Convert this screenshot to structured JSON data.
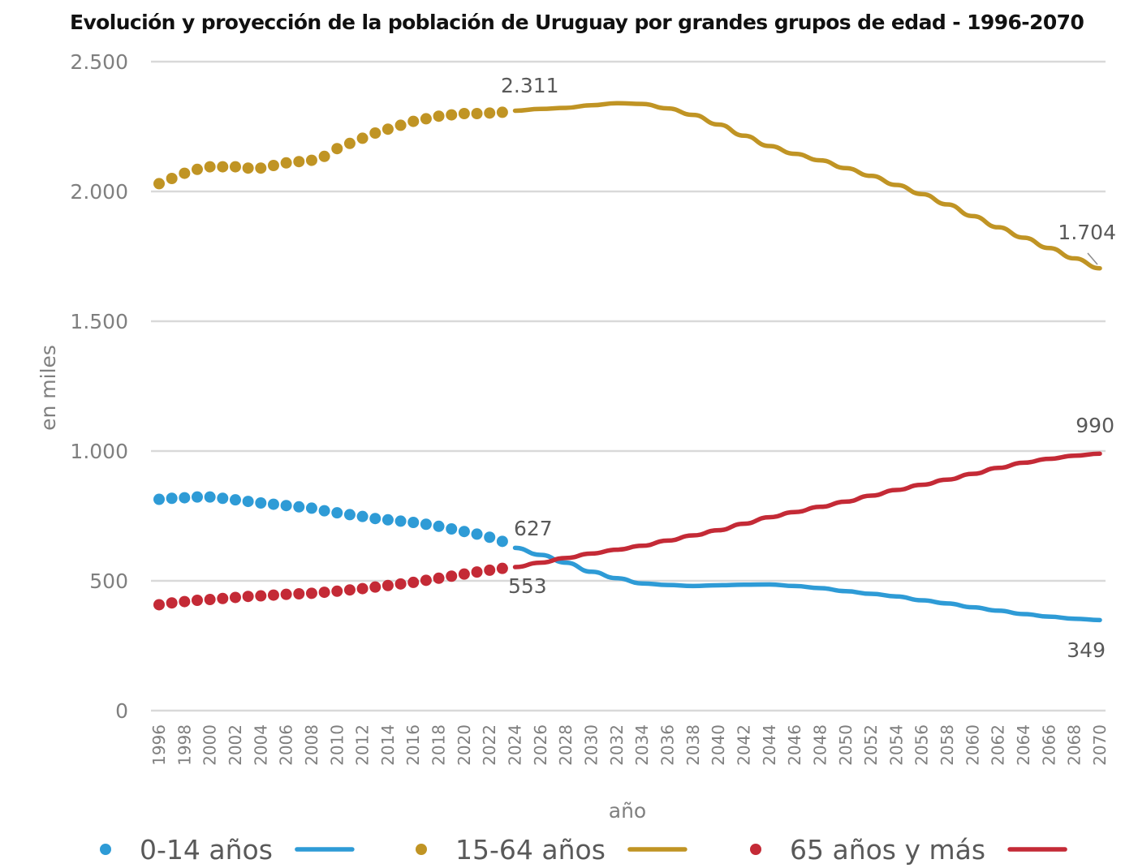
{
  "chart_data": {
    "type": "line",
    "title": "Evolución y proyección de la población de Uruguay por grandes grupos de edad - 1996-2070",
    "xlabel": "año",
    "ylabel": "en miles",
    "ylim": [
      0,
      2500
    ],
    "xlim": [
      1996,
      2070
    ],
    "grid": true,
    "legend_position": "bottom",
    "y_ticks": [
      {
        "value": 0,
        "label": "0"
      },
      {
        "value": 500,
        "label": "500"
      },
      {
        "value": 1000,
        "label": "1.000"
      },
      {
        "value": 1500,
        "label": "1.500"
      },
      {
        "value": 2000,
        "label": "2.000"
      },
      {
        "value": 2500,
        "label": "2.500"
      }
    ],
    "x_ticks": [
      1996,
      1998,
      2000,
      2002,
      2004,
      2006,
      2008,
      2010,
      2012,
      2014,
      2016,
      2018,
      2020,
      2022,
      2024,
      2026,
      2028,
      2030,
      2032,
      2034,
      2036,
      2038,
      2040,
      2042,
      2044,
      2046,
      2048,
      2050,
      2052,
      2054,
      2056,
      2058,
      2060,
      2062,
      2064,
      2066,
      2068,
      2070
    ],
    "historical_years": [
      1996,
      1997,
      1998,
      1999,
      2000,
      2001,
      2002,
      2003,
      2004,
      2005,
      2006,
      2007,
      2008,
      2009,
      2010,
      2011,
      2012,
      2013,
      2014,
      2015,
      2016,
      2017,
      2018,
      2019,
      2020,
      2021,
      2022,
      2023
    ],
    "projection_years": [
      2024,
      2026,
      2028,
      2030,
      2032,
      2034,
      2036,
      2038,
      2040,
      2042,
      2044,
      2046,
      2048,
      2050,
      2052,
      2054,
      2056,
      2058,
      2060,
      2062,
      2064,
      2066,
      2068,
      2070
    ],
    "series": [
      {
        "name": "0-14 años",
        "color": "#2e9bd6",
        "historical": [
          814,
          818,
          820,
          823,
          823,
          818,
          812,
          806,
          800,
          795,
          790,
          785,
          780,
          770,
          762,
          755,
          748,
          740,
          735,
          730,
          725,
          718,
          710,
          700,
          690,
          680,
          668,
          652
        ],
        "projection": [
          627,
          600,
          570,
          535,
          510,
          490,
          484,
          480,
          483,
          485,
          486,
          480,
          472,
          460,
          450,
          440,
          425,
          413,
          398,
          385,
          372,
          362,
          354,
          349
        ]
      },
      {
        "name": "15-64 años",
        "color": "#c09424",
        "historical": [
          2030,
          2050,
          2070,
          2085,
          2095,
          2095,
          2095,
          2090,
          2090,
          2100,
          2110,
          2115,
          2120,
          2135,
          2165,
          2185,
          2205,
          2225,
          2240,
          2255,
          2270,
          2280,
          2290,
          2295,
          2300,
          2300,
          2302,
          2305
        ],
        "projection": [
          2311,
          2318,
          2322,
          2332,
          2340,
          2337,
          2320,
          2295,
          2258,
          2215,
          2175,
          2145,
          2120,
          2090,
          2060,
          2025,
          1990,
          1950,
          1905,
          1862,
          1822,
          1782,
          1742,
          1704
        ]
      },
      {
        "name": "65 años y más",
        "color": "#c42a36",
        "historical": [
          408,
          415,
          420,
          425,
          428,
          432,
          436,
          440,
          442,
          445,
          448,
          450,
          452,
          456,
          460,
          465,
          470,
          476,
          482,
          488,
          494,
          502,
          510,
          518,
          526,
          534,
          541,
          548
        ],
        "projection": [
          553,
          570,
          588,
          605,
          620,
          635,
          655,
          675,
          695,
          720,
          745,
          765,
          785,
          805,
          828,
          850,
          870,
          890,
          912,
          935,
          955,
          970,
          982,
          990
        ]
      }
    ],
    "annotations": [
      {
        "series": "15-64 años",
        "year": 2024,
        "value": 2311,
        "label": "2.311"
      },
      {
        "series": "15-64 años",
        "year": 2070,
        "value": 1704,
        "label": "1.704"
      },
      {
        "series": "0-14 años",
        "year": 2024,
        "value": 627,
        "label": "627"
      },
      {
        "series": "65 años y más",
        "year": 2024,
        "value": 553,
        "label": "553"
      },
      {
        "series": "65 años y más",
        "year": 2070,
        "value": 990,
        "label": "990"
      },
      {
        "series": "0-14 años",
        "year": 2070,
        "value": 349,
        "label": "349"
      }
    ],
    "legend": [
      {
        "label": "0-14 años",
        "marker": "dot",
        "line": true,
        "color": "#2e9bd6"
      },
      {
        "label": "15-64 años",
        "marker": "dot",
        "line": true,
        "color": "#c09424"
      },
      {
        "label": "65 años y más",
        "marker": "dot",
        "line": true,
        "color": "#c42a36"
      }
    ]
  }
}
